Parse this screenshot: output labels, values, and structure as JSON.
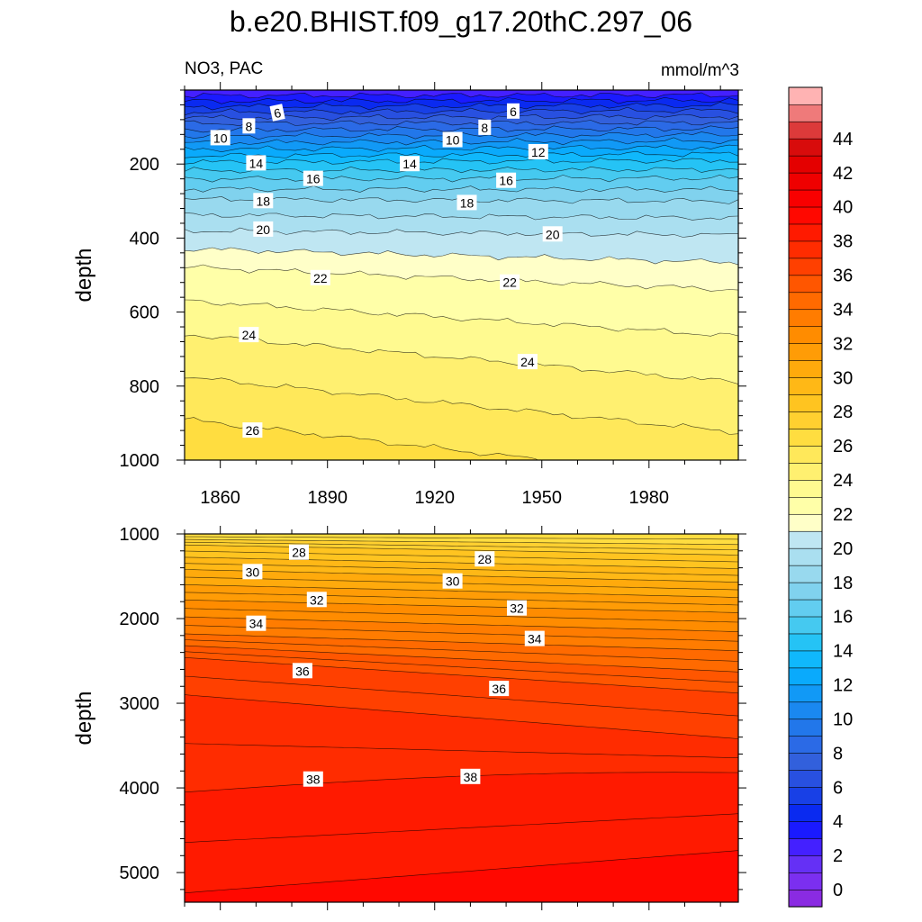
{
  "title": "b.e20.BHIST.f09_g17.20thC.297_06",
  "variable_label": "NO3, PAC",
  "units_label": "mmol/m^3",
  "chart_data": [
    {
      "type": "heatmap",
      "panel": "upper",
      "x_range": [
        1850,
        2005
      ],
      "ylim": [
        0,
        1000
      ],
      "y_reversed": true,
      "ylabel": "depth",
      "y_ticks": [
        200,
        400,
        600,
        800,
        1000
      ],
      "x_ticks": [
        1860,
        1890,
        1920,
        1950,
        1980
      ],
      "x_tick_labels_shown": true,
      "contour_interval": 1,
      "contours": [
        {
          "level": 6,
          "depth_start": 60,
          "depth_end": 55
        },
        {
          "level": 8,
          "depth_start": 90,
          "depth_end": 88
        },
        {
          "level": 10,
          "depth_start": 125,
          "depth_end": 120
        },
        {
          "level": 12,
          "depth_start": 160,
          "depth_end": 155
        },
        {
          "level": 14,
          "depth_start": 195,
          "depth_end": 190
        },
        {
          "level": 16,
          "depth_start": 240,
          "depth_end": 238
        },
        {
          "level": 18,
          "depth_start": 295,
          "depth_end": 300
        },
        {
          "level": 20,
          "depth_start": 380,
          "depth_end": 392
        },
        {
          "level": 22,
          "depth_start": 478,
          "depth_end": 540
        },
        {
          "level": 24,
          "depth_start": 660,
          "depth_end": 790
        },
        {
          "level": 26,
          "depth_start": 890,
          "depth_end": 1060
        }
      ],
      "contour_labels": [
        {
          "text": "6",
          "x": 1876,
          "depth": 62,
          "angle": -12
        },
        {
          "text": "8",
          "x": 1868,
          "depth": 98,
          "angle": 0
        },
        {
          "text": "10",
          "x": 1860,
          "depth": 130,
          "angle": 0
        },
        {
          "text": "14",
          "x": 1870,
          "depth": 198,
          "angle": 0
        },
        {
          "text": "16",
          "x": 1886,
          "depth": 240,
          "angle": 0
        },
        {
          "text": "18",
          "x": 1872,
          "depth": 300,
          "angle": 0
        },
        {
          "text": "20",
          "x": 1872,
          "depth": 377,
          "angle": 0
        },
        {
          "text": "22",
          "x": 1888,
          "depth": 508,
          "angle": 0
        },
        {
          "text": "24",
          "x": 1868,
          "depth": 662,
          "angle": 0
        },
        {
          "text": "26",
          "x": 1869,
          "depth": 920,
          "angle": 0
        },
        {
          "text": "6",
          "x": 1942,
          "depth": 58,
          "angle": 0
        },
        {
          "text": "8",
          "x": 1934,
          "depth": 102,
          "angle": 0
        },
        {
          "text": "10",
          "x": 1925,
          "depth": 135,
          "angle": 0
        },
        {
          "text": "12",
          "x": 1949,
          "depth": 168,
          "angle": 0
        },
        {
          "text": "14",
          "x": 1913,
          "depth": 200,
          "angle": 0
        },
        {
          "text": "16",
          "x": 1940,
          "depth": 245,
          "angle": 0
        },
        {
          "text": "18",
          "x": 1929,
          "depth": 305,
          "angle": 0
        },
        {
          "text": "20",
          "x": 1953,
          "depth": 390,
          "angle": 0
        },
        {
          "text": "22",
          "x": 1941,
          "depth": 520,
          "angle": 0
        },
        {
          "text": "24",
          "x": 1946,
          "depth": 735,
          "angle": 0
        }
      ]
    },
    {
      "type": "heatmap",
      "panel": "lower",
      "x_range": [
        1850,
        2005
      ],
      "ylim": [
        1000,
        5350
      ],
      "y_reversed": true,
      "ylabel": "depth",
      "y_ticks": [
        1000,
        2000,
        3000,
        4000,
        5000
      ],
      "x_ticks": [
        1860,
        1890,
        1920,
        1950,
        1980
      ],
      "x_tick_labels_shown": false,
      "contour_interval": 0.5,
      "contours": [
        {
          "level": 28,
          "depth_start": 1130,
          "depth_end": 1250
        },
        {
          "level": 30,
          "depth_start": 1420,
          "depth_end": 1570
        },
        {
          "level": 32,
          "depth_start": 1780,
          "depth_end": 1930
        },
        {
          "level": 34,
          "depth_start": 2180,
          "depth_end": 2380
        },
        {
          "level": 36,
          "depth_start": 2460,
          "depth_end": 2880
        },
        {
          "level": 37,
          "depth_start": 2900,
          "depth_end": 3420
        },
        {
          "level": 38,
          "depth_start": 4050,
          "depth_end": 3870,
          "peak_depth": 3840
        },
        {
          "level": 39,
          "depth_start": 5240,
          "depth_end": 4740
        }
      ],
      "contour_labels": [
        {
          "text": "28",
          "x": 1882,
          "depth": 1220,
          "angle": 0
        },
        {
          "text": "30",
          "x": 1869,
          "depth": 1450,
          "angle": 0
        },
        {
          "text": "32",
          "x": 1887,
          "depth": 1780,
          "angle": 0
        },
        {
          "text": "34",
          "x": 1870,
          "depth": 2060,
          "angle": 0
        },
        {
          "text": "36",
          "x": 1883,
          "depth": 2620,
          "angle": 0
        },
        {
          "text": "38",
          "x": 1886,
          "depth": 3900,
          "angle": 0
        },
        {
          "text": "28",
          "x": 1934,
          "depth": 1300,
          "angle": 0
        },
        {
          "text": "30",
          "x": 1925,
          "depth": 1560,
          "angle": 0
        },
        {
          "text": "32",
          "x": 1943,
          "depth": 1880,
          "angle": 0
        },
        {
          "text": "34",
          "x": 1948,
          "depth": 2240,
          "angle": 0
        },
        {
          "text": "36",
          "x": 1938,
          "depth": 2830,
          "angle": 0
        },
        {
          "text": "38",
          "x": 1930,
          "depth": 3870,
          "angle": 0
        }
      ]
    }
  ],
  "colorbar": {
    "labels": [
      "0",
      "2",
      "4",
      "6",
      "8",
      "10",
      "12",
      "14",
      "16",
      "18",
      "20",
      "22",
      "24",
      "26",
      "28",
      "30",
      "32",
      "34",
      "36",
      "38",
      "40",
      "42",
      "44"
    ],
    "colors": [
      "#8a2be2",
      "#7b2ff0",
      "#6530f5",
      "#4420ff",
      "#1a1aff",
      "#0a2af0",
      "#1840e6",
      "#2850e0",
      "#3260dc",
      "#2b6ae6",
      "#2277ea",
      "#1a88f0",
      "#1199f6",
      "#0aaafc",
      "#10b8fc",
      "#25c3f5",
      "#45c9f0",
      "#62cdf0",
      "#80d2ee",
      "#98d9ee",
      "#aadff0",
      "#bfe6f2",
      "#ffffc8",
      "#ffffa8",
      "#fffa90",
      "#fff070",
      "#ffe85a",
      "#ffdd40",
      "#ffd030",
      "#ffc420",
      "#ffb816",
      "#ffaa0c",
      "#ff9c06",
      "#ff8c00",
      "#ff7c00",
      "#ff6a00",
      "#ff5600",
      "#ff4000",
      "#ff2c00",
      "#ff1a00",
      "#ff0800",
      "#f80000",
      "#ef0000",
      "#e40000",
      "#d80c0c",
      "#dc3a3a",
      "#ef7a7a",
      "#ffb3b3"
    ]
  }
}
